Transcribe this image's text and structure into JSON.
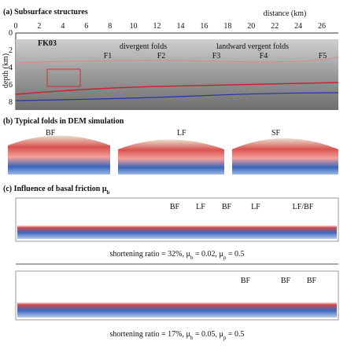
{
  "panel_a": {
    "title": "(a) Subsurface structures",
    "axis_label": "distance (km)",
    "depth_label": "depth (km)",
    "x_ticks": [
      "0",
      "2",
      "4",
      "6",
      "8",
      "10",
      "12",
      "14",
      "16",
      "18",
      "20",
      "22",
      "24",
      "26"
    ],
    "depth_ticks": [
      "0",
      "2",
      "4",
      "6",
      "8"
    ],
    "well": "FK03",
    "divergent": "divergent folds",
    "landward": "landward vergent folds",
    "faults": [
      "F1",
      "F2",
      "F3",
      "F4",
      "F5"
    ]
  },
  "panel_b": {
    "title": "(b) Typical folds in DEM simulation",
    "labels": [
      "BF",
      "LF",
      "SF"
    ]
  },
  "panel_c": {
    "title": [
      "(c) Influence of basal friction μ",
      "b"
    ],
    "top_labels": [
      "BF",
      "LF",
      "BF",
      "LF",
      "LF/BF"
    ],
    "top_caption": [
      "shortening ratio = 32%, μ",
      "b",
      " = 0.02, μ",
      "p",
      " = 0.5"
    ],
    "bottom_labels": [
      "BF",
      "BF",
      "BF"
    ],
    "bottom_caption": [
      "shortening ratio = 17%, μ",
      "b",
      " = 0.05, μ",
      "p",
      " = 0.5"
    ]
  }
}
